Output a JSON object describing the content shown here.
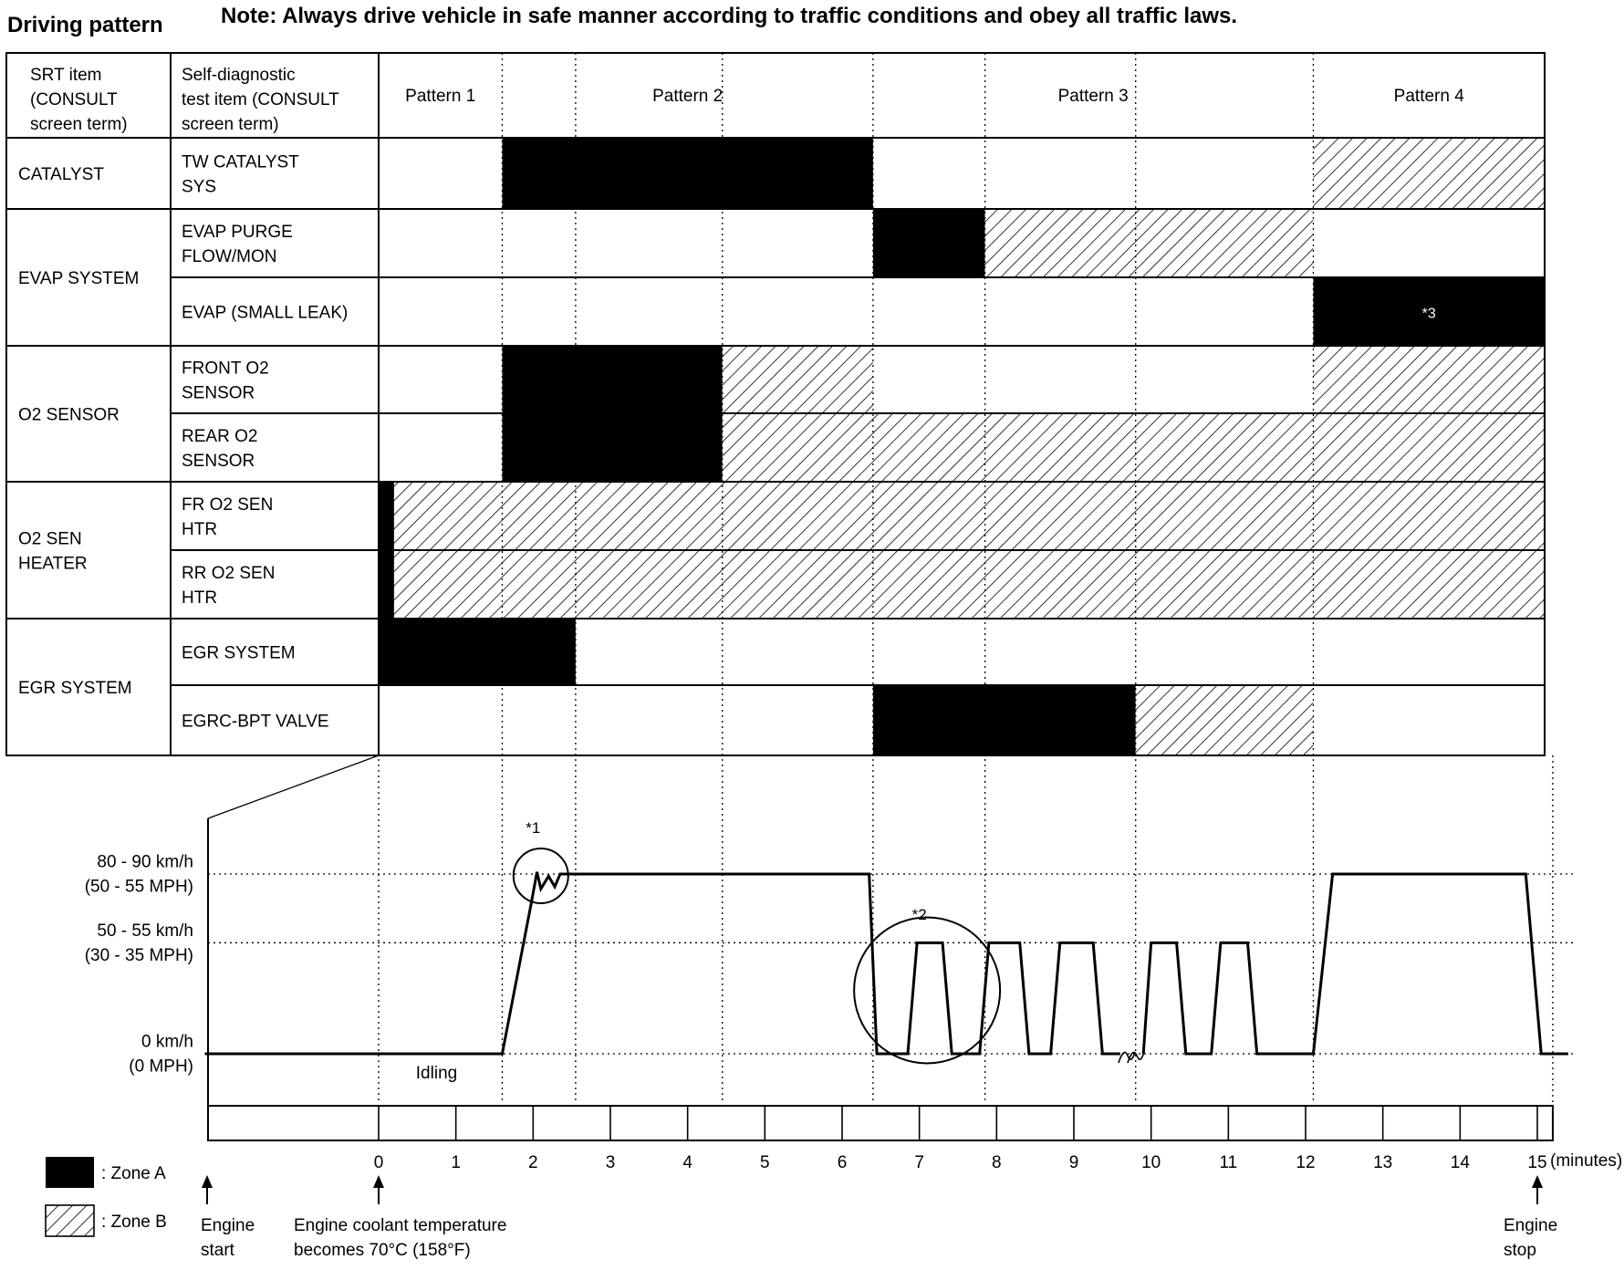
{
  "header": {
    "title": "Driving pattern",
    "note": "Note: Always drive vehicle in safe manner according to traffic conditions and obey all traffic laws."
  },
  "table": {
    "col_headers": {
      "srt_item": [
        "SRT item",
        "(CONSULT",
        "screen term)"
      ],
      "self_diag": [
        "Self-diagnostic",
        "test item (CONSULT",
        "screen term)"
      ]
    },
    "patterns": [
      "Pattern 1",
      "Pattern 2",
      "Pattern 3",
      "Pattern 4"
    ],
    "groups": [
      {
        "label": [
          "CATALYST"
        ],
        "rows": [
          0
        ]
      },
      {
        "label": [
          "EVAP SYSTEM"
        ],
        "rows": [
          1,
          2
        ]
      },
      {
        "label": [
          "O2 SENSOR"
        ],
        "rows": [
          3,
          4
        ]
      },
      {
        "label": [
          "O2 SEN",
          "HEATER"
        ],
        "rows": [
          5,
          6
        ]
      },
      {
        "label": [
          "EGR SYSTEM"
        ],
        "rows": [
          7,
          8
        ]
      }
    ],
    "rows": [
      {
        "label": [
          "TW CATALYST",
          "SYS"
        ],
        "zones": [
          {
            "zone": "A",
            "from": 1.6,
            "to": 6.4
          },
          {
            "zone": "B",
            "from": 12.1,
            "to": 15.2
          }
        ]
      },
      {
        "label": [
          "EVAP PURGE",
          "FLOW/MON"
        ],
        "zones": [
          {
            "zone": "A",
            "from": 6.4,
            "to": 7.85
          },
          {
            "zone": "B",
            "from": 7.85,
            "to": 12.1
          }
        ]
      },
      {
        "label": [
          "EVAP (SMALL LEAK)"
        ],
        "zones": [
          {
            "zone": "A",
            "from": 12.1,
            "to": 15.2,
            "note": "*3"
          }
        ]
      },
      {
        "label": [
          "FRONT O2",
          "SENSOR"
        ],
        "zones": [
          {
            "zone": "A",
            "from": 1.6,
            "to": 4.45
          },
          {
            "zone": "B",
            "from": 4.45,
            "to": 6.4
          },
          {
            "zone": "B",
            "from": 12.1,
            "to": 15.2
          }
        ]
      },
      {
        "label": [
          "REAR O2",
          "SENSOR"
        ],
        "zones": [
          {
            "zone": "A",
            "from": 1.6,
            "to": 4.45
          },
          {
            "zone": "B",
            "from": 4.45,
            "to": 15.2
          }
        ]
      },
      {
        "label": [
          "FR O2 SEN",
          "HTR"
        ],
        "zones": [
          {
            "zone": "A",
            "from": 0,
            "to": 0.2
          },
          {
            "zone": "B",
            "from": 0.2,
            "to": 15.2
          }
        ]
      },
      {
        "label": [
          "RR O2 SEN",
          "HTR"
        ],
        "zones": [
          {
            "zone": "A",
            "from": 0,
            "to": 0.2
          },
          {
            "zone": "B",
            "from": 0.2,
            "to": 15.2
          }
        ]
      },
      {
        "label": [
          "EGR SYSTEM"
        ],
        "zones": [
          {
            "zone": "A",
            "from": 0,
            "to": 2.55
          }
        ]
      },
      {
        "label": [
          "EGRC-BPT VALVE"
        ],
        "zones": [
          {
            "zone": "A",
            "from": 6.4,
            "to": 9.8
          },
          {
            "zone": "B",
            "from": 9.8,
            "to": 12.1
          }
        ]
      }
    ]
  },
  "chart_data": {
    "type": "line",
    "x_unit": "(minutes)",
    "x_ticks": [
      "0",
      "1",
      "2",
      "3",
      "4",
      "5",
      "6",
      "7",
      "8",
      "9",
      "10",
      "11",
      "12",
      "13",
      "14",
      "15"
    ],
    "y_levels": [
      {
        "value": 85,
        "label": [
          "80 - 90 km/h",
          "(50 - 55 MPH)"
        ]
      },
      {
        "value": 52.5,
        "label": [
          "50 - 55 km/h",
          "(30 - 35 MPH)"
        ]
      },
      {
        "value": 0,
        "label": [
          "0 km/h",
          "(0 MPH)"
        ]
      }
    ],
    "speed_profile": [
      [
        -2.25,
        0
      ],
      [
        1.6,
        0
      ],
      [
        1.98,
        72
      ],
      [
        2.05,
        86
      ],
      [
        2.1,
        78
      ],
      [
        2.2,
        84
      ],
      [
        2.28,
        79
      ],
      [
        2.35,
        85
      ],
      [
        6.35,
        85
      ],
      [
        6.45,
        0
      ],
      [
        6.85,
        0
      ],
      [
        6.97,
        52.5
      ],
      [
        7.3,
        52.5
      ],
      [
        7.42,
        0
      ],
      [
        7.78,
        0
      ],
      [
        7.9,
        52.5
      ],
      [
        8.3,
        52.5
      ],
      [
        8.42,
        0
      ],
      [
        8.7,
        0
      ],
      [
        8.82,
        52.5
      ],
      [
        9.25,
        52.5
      ],
      [
        9.37,
        0
      ],
      [
        9.6,
        0
      ],
      [
        9.9,
        0
      ],
      [
        10.0,
        52.5
      ],
      [
        10.33,
        52.5
      ],
      [
        10.45,
        0
      ],
      [
        10.78,
        0
      ],
      [
        10.9,
        52.5
      ],
      [
        11.25,
        52.5
      ],
      [
        11.37,
        0
      ],
      [
        12.1,
        0
      ],
      [
        12.35,
        85
      ],
      [
        14.85,
        85
      ],
      [
        15.05,
        0
      ],
      [
        15.4,
        0
      ]
    ],
    "markers": {
      "n1": "*1",
      "n2": "*2",
      "idling": "Idling"
    },
    "pattern_boundaries": [
      1.6,
      6.4,
      12.1,
      15.2
    ],
    "minor_boundaries": [
      2.55,
      4.45,
      7.85,
      9.8
    ]
  },
  "legend": {
    "zone_a": ": Zone A",
    "zone_b": ": Zone B"
  },
  "annotations": {
    "engine_start": [
      "Engine",
      "start"
    ],
    "coolant": [
      "Engine coolant temperature",
      "becomes 70°C (158°F)"
    ],
    "engine_stop": [
      "Engine",
      "stop"
    ]
  }
}
